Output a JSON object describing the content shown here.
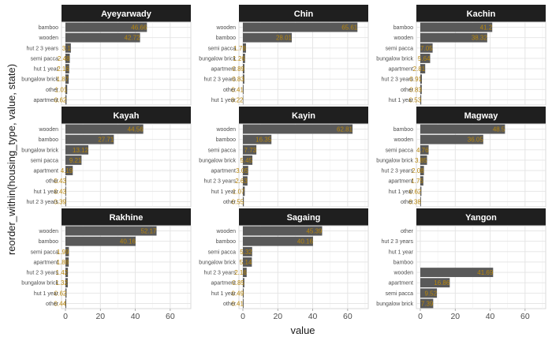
{
  "chart_data": {
    "type": "bar",
    "orientation": "horizontal",
    "facet": "small-multiples",
    "xlabel": "value",
    "ylabel": "reorder_within(housing_type, value, state)",
    "xlim": [
      0,
      70
    ],
    "xticks": [
      0,
      20,
      40,
      60
    ],
    "grid": true,
    "bar_color": "#595959",
    "label_color": "#B8860B",
    "strip_color": "#1F1F1F",
    "strip_text_color": "#FFFFFF",
    "panels": [
      {
        "state": "Ayeyarwady",
        "categories": [
          "bamboo",
          "wooden",
          "hut 2 3 years",
          "semi pacca",
          "hut 1 year",
          "bungalow brick",
          "other",
          "apartment"
        ],
        "values": [
          46.66,
          42.72,
          3.1,
          2.48,
          2.16,
          1.87,
          1.01,
          0.62
        ],
        "labels": [
          "46.66",
          "42.72",
          "3.1",
          "2.48",
          "2.16",
          "1.87",
          "1.01",
          "0.62"
        ]
      },
      {
        "state": "Chin",
        "categories": [
          "wooden",
          "bamboo",
          "semi pacca",
          "bungalow brick",
          "apartment",
          "hut 2 3 years",
          "other",
          "hut 1 year"
        ],
        "values": [
          65.61,
          28.01,
          1.78,
          1.26,
          0.89,
          0.83,
          0.41,
          0.22
        ],
        "labels": [
          "65.61",
          "28.01",
          "1.78",
          "1.26",
          "0.89",
          "0.83",
          "0.41",
          "0.22"
        ]
      },
      {
        "state": "Kachin",
        "categories": [
          "bamboo",
          "wooden",
          "semi pacca",
          "bungalow brick",
          "apartment",
          "hut 2 3 years",
          "other",
          "hut 1 year"
        ],
        "values": [
          41.2,
          38.32,
          7.05,
          5.64,
          2.81,
          0.91,
          0.83,
          0.53
        ],
        "labels": [
          "41.2",
          "38.32",
          "7.05",
          "5.64",
          "2.81",
          "0.91",
          "0.83",
          "0.53"
        ]
      },
      {
        "state": "Kayah",
        "categories": [
          "wooden",
          "bamboo",
          "bungalow brick",
          "semi pacca",
          "apartment",
          "other",
          "hut 1 year",
          "hut 2 3 years"
        ],
        "values": [
          44.56,
          27.71,
          13.12,
          9.21,
          4.19,
          0.43,
          0.43,
          0.39
        ],
        "labels": [
          "44.56",
          "27.71",
          "13.12",
          "9.21",
          "4.19",
          "0.43",
          "0.43",
          "0.39"
        ]
      },
      {
        "state": "Kayin",
        "categories": [
          "wooden",
          "bamboo",
          "semi pacca",
          "bungalow brick",
          "apartment",
          "hut 2 3 years",
          "hut 1 year",
          "other"
        ],
        "values": [
          62.81,
          16.35,
          7.73,
          5.45,
          3.05,
          2.63,
          1.07,
          0.55
        ],
        "labels": [
          "62.81",
          "16.35",
          "7.73",
          "5.45",
          "3.05",
          "2.63",
          "1.07",
          "0.55"
        ]
      },
      {
        "state": "Magway",
        "categories": [
          "bamboo",
          "wooden",
          "semi pacca",
          "bungalow brick",
          "hut 2 3 years",
          "apartment",
          "hut 1 year",
          "other"
        ],
        "values": [
          48.5,
          36.05,
          4.76,
          3.85,
          2.08,
          1.75,
          0.62,
          0.38
        ],
        "labels": [
          "48.5",
          "36.05",
          "4.76",
          "3.85",
          "2.08",
          "1.75",
          "0.62",
          "0.38"
        ]
      },
      {
        "state": "Rakhine",
        "categories": [
          "wooden",
          "bamboo",
          "semi pacca",
          "apartment",
          "hut 2 3 years",
          "bungalow brick",
          "hut 1 year",
          "other"
        ],
        "values": [
          52.17,
          40.16,
          1.99,
          1.88,
          1.42,
          1.32,
          0.62,
          0.44
        ],
        "labels": [
          "52.17",
          "40.16",
          "1.99",
          "1.88",
          "1.42",
          "1.32",
          "0.62",
          "0.44"
        ]
      },
      {
        "state": "Sagaing",
        "categories": [
          "wooden",
          "bamboo",
          "semi pacca",
          "bungalow brick",
          "hut 2 3 years",
          "apartment",
          "hut 1 year",
          "other"
        ],
        "values": [
          45.39,
          40.16,
          5.32,
          5.14,
          2.16,
          0.85,
          0.49,
          0.41
        ],
        "labels": [
          "45.39",
          "40.16",
          "5.32",
          "5.14",
          "2.16",
          "0.85",
          "0.49",
          "0.41"
        ]
      },
      {
        "state": "Yangon",
        "categories": [
          "other",
          "hut 2 3 years",
          "hut 1 year",
          "bamboo",
          "wooden",
          "apartment",
          "semi pacca",
          "bungalow brick"
        ],
        "values": [
          0,
          0,
          0,
          0,
          41.69,
          16.86,
          9.52,
          7.39
        ],
        "labels": [
          "",
          "",
          "",
          "",
          "41.69",
          "16.86",
          "9.52",
          "7.39"
        ]
      }
    ]
  }
}
